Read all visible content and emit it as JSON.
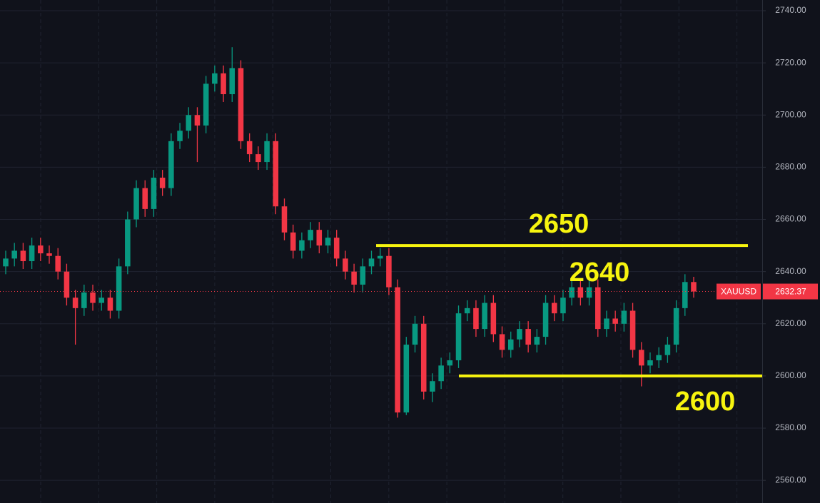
{
  "chart_data": {
    "type": "candlestick",
    "symbol": "XAUUSD",
    "up_color": "#089981",
    "down_color": "#f23645",
    "grid": true,
    "ylim": [
      2551.3,
      2744.1
    ],
    "yticks": [
      {
        "value": 2560,
        "label": "2560.00"
      },
      {
        "value": 2580,
        "label": "2580.00"
      },
      {
        "value": 2600,
        "label": "2600.00"
      },
      {
        "value": 2620,
        "label": "2620.00"
      },
      {
        "value": 2640,
        "label": "2640.00"
      },
      {
        "value": 2660,
        "label": "2660.00"
      },
      {
        "value": 2680,
        "label": "2680.00"
      },
      {
        "value": 2700,
        "label": "2700.00"
      },
      {
        "value": 2720,
        "label": "2720.00"
      },
      {
        "value": 2740,
        "label": "2740.00"
      }
    ],
    "open": [
      2642,
      2645,
      2648,
      2644,
      2650,
      2647,
      2646,
      2640,
      2630,
      2626,
      2632,
      2628,
      2630,
      2625,
      2642,
      2660,
      2672,
      2664,
      2676,
      2672,
      2690,
      2694,
      2700,
      2696,
      2712,
      2716,
      2708,
      2718,
      2690,
      2685,
      2682,
      2690,
      2665,
      2655,
      2648,
      2652,
      2656,
      2650,
      2653,
      2645,
      2640,
      2635,
      2642,
      2645,
      2646,
      2634,
      2586,
      2612,
      2620,
      2594,
      2598,
      2604,
      2606,
      2624,
      2626,
      2618,
      2628,
      2616,
      2610,
      2614,
      2618,
      2612,
      2615,
      2628,
      2624,
      2630,
      2634,
      2630,
      2634,
      2618,
      2622,
      2620,
      2625,
      2610,
      2604,
      2606,
      2608,
      2612,
      2626,
      2636
    ],
    "high": [
      2648,
      2651,
      2651,
      2653,
      2653,
      2650,
      2649,
      2643,
      2633,
      2635,
      2635,
      2633,
      2633,
      2645,
      2663,
      2675,
      2675,
      2679,
      2679,
      2693,
      2697,
      2703,
      2703,
      2715,
      2719,
      2719,
      2726,
      2721,
      2693,
      2688,
      2693,
      2693,
      2668,
      2658,
      2655,
      2659,
      2659,
      2656,
      2656,
      2648,
      2643,
      2645,
      2648,
      2649,
      2649,
      2637,
      2615,
      2623,
      2623,
      2601,
      2607,
      2609,
      2627,
      2629,
      2629,
      2631,
      2631,
      2619,
      2617,
      2621,
      2621,
      2618,
      2631,
      2631,
      2633,
      2637,
      2637,
      2637,
      2637,
      2625,
      2625,
      2628,
      2628,
      2613,
      2609,
      2611,
      2615,
      2629,
      2639,
      2638
    ],
    "low": [
      2639,
      2642,
      2641,
      2641,
      2644,
      2643,
      2637,
      2627,
      2612,
      2623,
      2625,
      2625,
      2622,
      2622,
      2639,
      2657,
      2661,
      2661,
      2669,
      2669,
      2687,
      2691,
      2682,
      2693,
      2709,
      2705,
      2705,
      2687,
      2682,
      2679,
      2679,
      2662,
      2652,
      2645,
      2645,
      2649,
      2647,
      2647,
      2642,
      2637,
      2632,
      2632,
      2639,
      2642,
      2631,
      2584,
      2585,
      2609,
      2591,
      2590,
      2595,
      2601,
      2603,
      2621,
      2615,
      2615,
      2613,
      2607,
      2607,
      2611,
      2609,
      2609,
      2612,
      2621,
      2621,
      2627,
      2627,
      2627,
      2615,
      2615,
      2617,
      2617,
      2607,
      2596,
      2601,
      2603,
      2605,
      2609,
      2623,
      2630
    ],
    "close": [
      2645,
      2648,
      2644,
      2650,
      2647,
      2646,
      2640,
      2630,
      2626,
      2632,
      2628,
      2630,
      2625,
      2642,
      2660,
      2672,
      2664,
      2676,
      2672,
      2690,
      2694,
      2700,
      2696,
      2712,
      2716,
      2708,
      2718,
      2690,
      2685,
      2682,
      2690,
      2665,
      2655,
      2648,
      2652,
      2656,
      2650,
      2653,
      2645,
      2640,
      2635,
      2642,
      2645,
      2646,
      2634,
      2586,
      2612,
      2620,
      2594,
      2598,
      2604,
      2606,
      2624,
      2626,
      2618,
      2628,
      2616,
      2610,
      2614,
      2618,
      2612,
      2615,
      2628,
      2624,
      2630,
      2634,
      2630,
      2634,
      2618,
      2622,
      2620,
      2625,
      2610,
      2604,
      2606,
      2608,
      2612,
      2626,
      2636,
      2632.37
    ],
    "levels": [
      {
        "value": 2650,
        "label": "2650",
        "color": "#f7f40f"
      },
      {
        "value": 2600,
        "label": "2600",
        "color": "#f7f40f"
      }
    ],
    "annotations": [
      "2640"
    ]
  }
}
